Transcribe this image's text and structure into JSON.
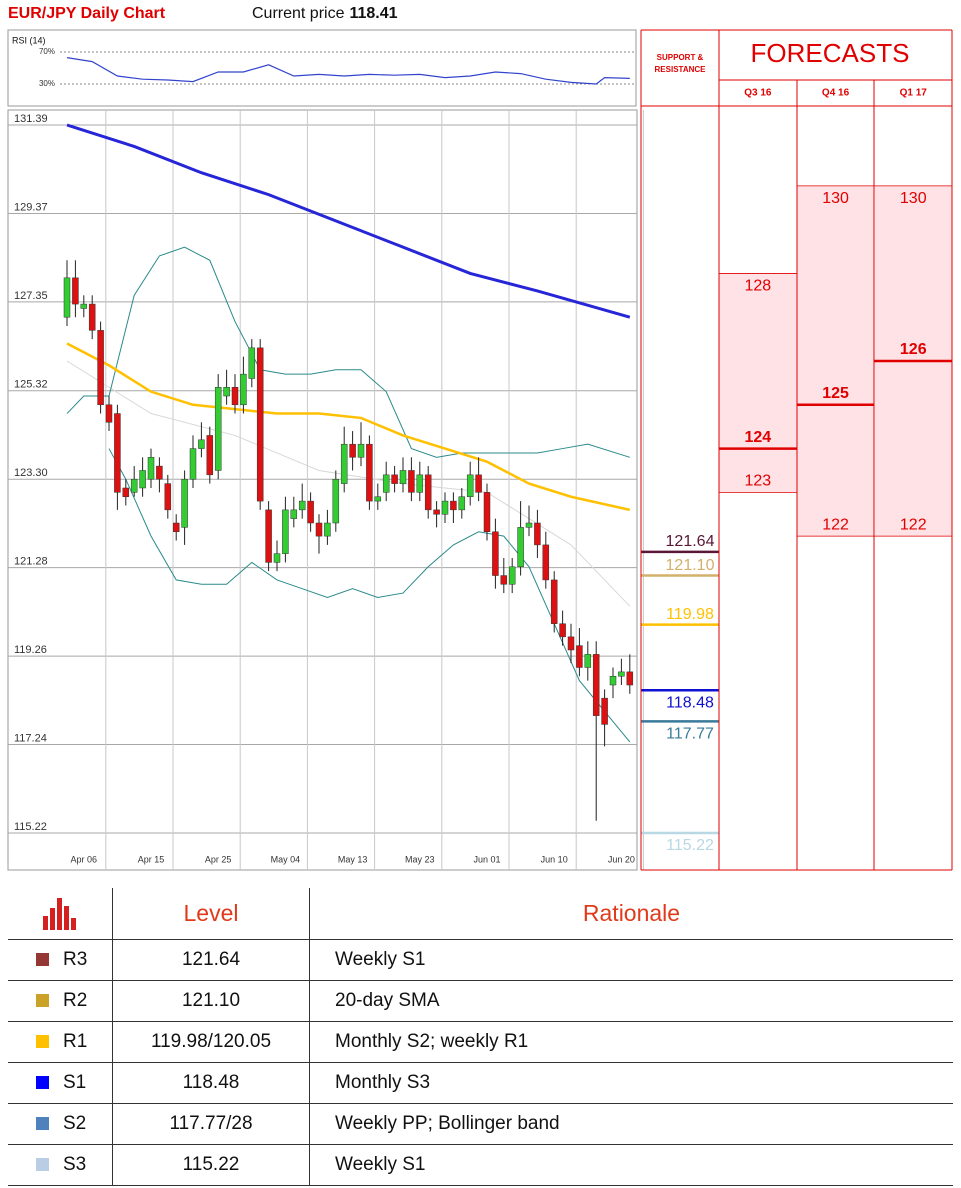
{
  "header": {
    "title": "EUR/JPY Daily Chart",
    "price_label": "Current price",
    "price": 118.41
  },
  "chart_data": [
    {
      "type": "line",
      "title": "RSI (14)",
      "color": "#3344cc",
      "ylim": [
        0,
        100
      ],
      "yticks": [
        {
          "value": 70,
          "label": "70%"
        },
        {
          "value": 30,
          "label": "30%"
        }
      ],
      "xlim": [
        0,
        67
      ],
      "x": [
        0,
        3,
        6,
        9,
        12,
        15,
        18,
        21,
        24,
        27,
        30,
        33,
        36,
        39,
        42,
        45,
        48,
        51,
        54,
        57,
        60,
        63,
        64,
        67
      ],
      "values": [
        63,
        58,
        40,
        36,
        35,
        33,
        45,
        45,
        54,
        40,
        42,
        40,
        42,
        41,
        42,
        38,
        40,
        45,
        43,
        36,
        32,
        30,
        38,
        37
      ]
    },
    {
      "type": "candlestick",
      "up_color": "#33cc33",
      "down_color": "#dd1111",
      "grid": true,
      "ylim": [
        115.22,
        131.39
      ],
      "yticks": [
        131.39,
        129.37,
        127.35,
        125.32,
        {
          "value": 123.3,
          "label": "123.30"
        },
        121.28,
        119.26,
        117.24,
        115.22
      ],
      "categories": [
        null,
        null,
        "Apr 06",
        null,
        null,
        null,
        null,
        null,
        null,
        null,
        "Apr 15",
        null,
        null,
        null,
        null,
        null,
        null,
        null,
        "Apr 25",
        null,
        null,
        null,
        null,
        null,
        null,
        null,
        "May 04",
        null,
        null,
        null,
        null,
        null,
        null,
        null,
        "May 13",
        null,
        null,
        null,
        null,
        null,
        null,
        null,
        "May 23",
        null,
        null,
        null,
        null,
        null,
        null,
        null,
        "Jun 01",
        null,
        null,
        null,
        null,
        null,
        null,
        null,
        "Jun 10",
        null,
        null,
        null,
        null,
        null,
        null,
        null,
        "Jun 20",
        null
      ],
      "open": [
        127.0,
        127.9,
        127.2,
        127.3,
        126.7,
        125.0,
        124.8,
        123.1,
        123.0,
        123.1,
        123.3,
        123.6,
        123.2,
        122.3,
        122.2,
        123.3,
        124.0,
        124.3,
        123.5,
        125.2,
        125.4,
        125.0,
        125.6,
        126.3,
        122.6,
        121.4,
        121.6,
        122.4,
        122.6,
        122.8,
        122.3,
        122.0,
        122.3,
        123.2,
        124.1,
        123.8,
        124.1,
        122.8,
        123.0,
        123.4,
        123.2,
        123.5,
        123.0,
        123.4,
        122.6,
        122.5,
        122.8,
        122.6,
        122.9,
        123.4,
        123.0,
        122.1,
        121.1,
        120.9,
        121.3,
        122.2,
        122.3,
        121.8,
        121.0,
        120.0,
        119.7,
        119.5,
        119.0,
        119.3,
        118.3,
        118.6,
        118.8,
        118.9
      ],
      "high": [
        128.3,
        128.3,
        127.5,
        127.5,
        126.9,
        125.2,
        125.0,
        123.3,
        123.6,
        123.8,
        124.0,
        123.8,
        123.4,
        122.5,
        123.5,
        124.3,
        124.6,
        124.5,
        125.7,
        125.8,
        125.7,
        126.1,
        126.5,
        126.5,
        122.8,
        121.9,
        122.9,
        122.9,
        123.2,
        123.0,
        122.5,
        122.6,
        123.5,
        124.5,
        124.4,
        124.6,
        124.3,
        123.2,
        123.7,
        123.6,
        123.8,
        123.8,
        123.7,
        123.6,
        122.8,
        123.0,
        123.0,
        123.1,
        123.7,
        123.8,
        123.2,
        122.4,
        121.5,
        121.5,
        122.8,
        122.7,
        122.6,
        122.1,
        121.2,
        120.3,
        120.0,
        119.9,
        119.6,
        119.6,
        118.5,
        119.0,
        119.2,
        119.3
      ],
      "low": [
        126.8,
        127.0,
        127.0,
        126.5,
        124.8,
        124.4,
        122.6,
        122.7,
        122.9,
        122.9,
        123.1,
        123.0,
        122.4,
        121.9,
        121.8,
        123.1,
        123.8,
        123.2,
        123.3,
        125.0,
        124.8,
        124.8,
        125.4,
        122.6,
        121.2,
        121.2,
        121.4,
        122.2,
        122.4,
        122.1,
        121.6,
        121.8,
        122.1,
        123.0,
        123.5,
        123.6,
        122.6,
        122.6,
        122.8,
        123.0,
        123.0,
        122.8,
        122.8,
        122.4,
        122.2,
        122.3,
        122.3,
        122.4,
        122.7,
        122.8,
        121.9,
        120.8,
        120.7,
        120.7,
        121.1,
        122.0,
        121.5,
        120.8,
        119.8,
        119.5,
        119.1,
        118.8,
        118.7,
        115.5,
        117.2,
        118.3,
        118.6,
        118.4
      ],
      "close": [
        127.9,
        127.3,
        127.3,
        126.7,
        125.0,
        124.6,
        123.0,
        122.9,
        123.3,
        123.5,
        123.8,
        123.3,
        122.6,
        122.1,
        123.3,
        124.0,
        124.2,
        123.4,
        125.4,
        125.4,
        125.0,
        125.7,
        126.3,
        122.8,
        121.4,
        121.6,
        122.6,
        122.6,
        122.8,
        122.3,
        122.0,
        122.3,
        123.3,
        124.1,
        123.8,
        124.1,
        122.8,
        122.9,
        123.4,
        123.2,
        123.5,
        123.0,
        123.4,
        122.6,
        122.5,
        122.8,
        122.6,
        122.9,
        123.4,
        123.0,
        122.1,
        121.1,
        120.9,
        121.3,
        122.2,
        122.3,
        121.8,
        121.0,
        120.0,
        119.7,
        119.4,
        119.0,
        119.3,
        117.9,
        117.7,
        118.8,
        118.9,
        118.6
      ],
      "overlays": [
        {
          "color": "#d8d8d8",
          "width": 1,
          "x": [
            0,
            10,
            20,
            30,
            40,
            50,
            60,
            67
          ],
          "values": [
            126.0,
            124.8,
            124.3,
            123.5,
            123.2,
            123.0,
            121.8,
            120.4
          ]
        },
        {
          "color": "#2a8a8a",
          "width": 1,
          "x": [
            0,
            2,
            5,
            8,
            11,
            14,
            17,
            20,
            23,
            26,
            29,
            32,
            35,
            38,
            41,
            44,
            47,
            50,
            53,
            56,
            59,
            62,
            67
          ],
          "values": [
            124.8,
            125.2,
            125.2,
            127.5,
            128.4,
            128.6,
            128.3,
            126.9,
            125.8,
            125.7,
            125.7,
            125.8,
            125.8,
            125.3,
            124.0,
            123.8,
            123.9,
            123.9,
            123.9,
            123.9,
            124.0,
            124.1,
            123.8
          ]
        },
        {
          "color": "#2a8a8a",
          "width": 1,
          "x": [
            5,
            7,
            10,
            13,
            16,
            19,
            22,
            25,
            28,
            31,
            34,
            37,
            40,
            43,
            46,
            49,
            52,
            55,
            58,
            61,
            64,
            67
          ],
          "values": [
            124.0,
            123.3,
            122.0,
            121.0,
            120.9,
            120.9,
            121.4,
            121.0,
            120.8,
            120.6,
            120.8,
            120.6,
            120.7,
            121.3,
            121.8,
            122.1,
            122.0,
            121.3,
            120.0,
            118.7,
            118.0,
            117.3
          ]
        },
        {
          "color": "#ffc000",
          "width": 2.5,
          "x": [
            0,
            5,
            10,
            15,
            20,
            25,
            30,
            35,
            40,
            45,
            50,
            55,
            60,
            67
          ],
          "values": [
            126.4,
            125.9,
            125.3,
            125.0,
            124.9,
            124.8,
            124.8,
            124.7,
            124.3,
            124.0,
            123.7,
            123.2,
            122.9,
            122.6
          ]
        },
        {
          "color": "#2626d8",
          "width": 3,
          "x": [
            0,
            8,
            16,
            24,
            32,
            40,
            48,
            56,
            67
          ],
          "values": [
            131.39,
            130.9,
            130.3,
            129.8,
            129.2,
            128.6,
            128.0,
            127.6,
            127.0
          ]
        }
      ]
    }
  ],
  "support_resistance": {
    "title": "SUPPORT & RESISTANCE",
    "levels": [
      {
        "value": 121.64,
        "color": "#5a1636"
      },
      {
        "value": 121.1,
        "label": "121.10",
        "color": "#d4b06a"
      },
      {
        "value": 119.98,
        "color": "#ffc000"
      },
      {
        "value": 118.48,
        "color": "#1010d0"
      },
      {
        "value": 117.77,
        "color": "#3a7a9a"
      },
      {
        "value": 115.22,
        "color": "#b8d8e4"
      }
    ]
  },
  "forecasts": {
    "title": "FORECASTS",
    "color": "#e00000",
    "fill": "#ffe2e6",
    "columns": [
      {
        "label": "Q3 16",
        "high": 128,
        "target": 124,
        "low": 123
      },
      {
        "label": "Q4 16",
        "high": 130,
        "target": 125,
        "low": 122
      },
      {
        "label": "Q1 17",
        "high": 130,
        "target": 126,
        "low": 122
      }
    ]
  },
  "table": {
    "header": [
      "Level",
      "Rationale"
    ],
    "rows": [
      {
        "code": "R3",
        "color": "#953735",
        "level": "121.64",
        "rationale": "Weekly S1"
      },
      {
        "code": "R2",
        "color": "#c9a227",
        "level": "121.10",
        "rationale": "20-day SMA"
      },
      {
        "code": "R1",
        "color": "#ffc000",
        "level": "119.98/120.05",
        "rationale": "Monthly S2; weekly R1"
      },
      {
        "code": "S1",
        "color": "#0000ff",
        "level": "118.48",
        "rationale": "Monthly S3"
      },
      {
        "code": "S2",
        "color": "#4f81bd",
        "level": "117.77/28",
        "rationale": "Weekly PP; Bollinger band"
      },
      {
        "code": "S3",
        "color": "#b9cde5",
        "level": "115.22",
        "rationale": "Weekly S1"
      }
    ]
  }
}
